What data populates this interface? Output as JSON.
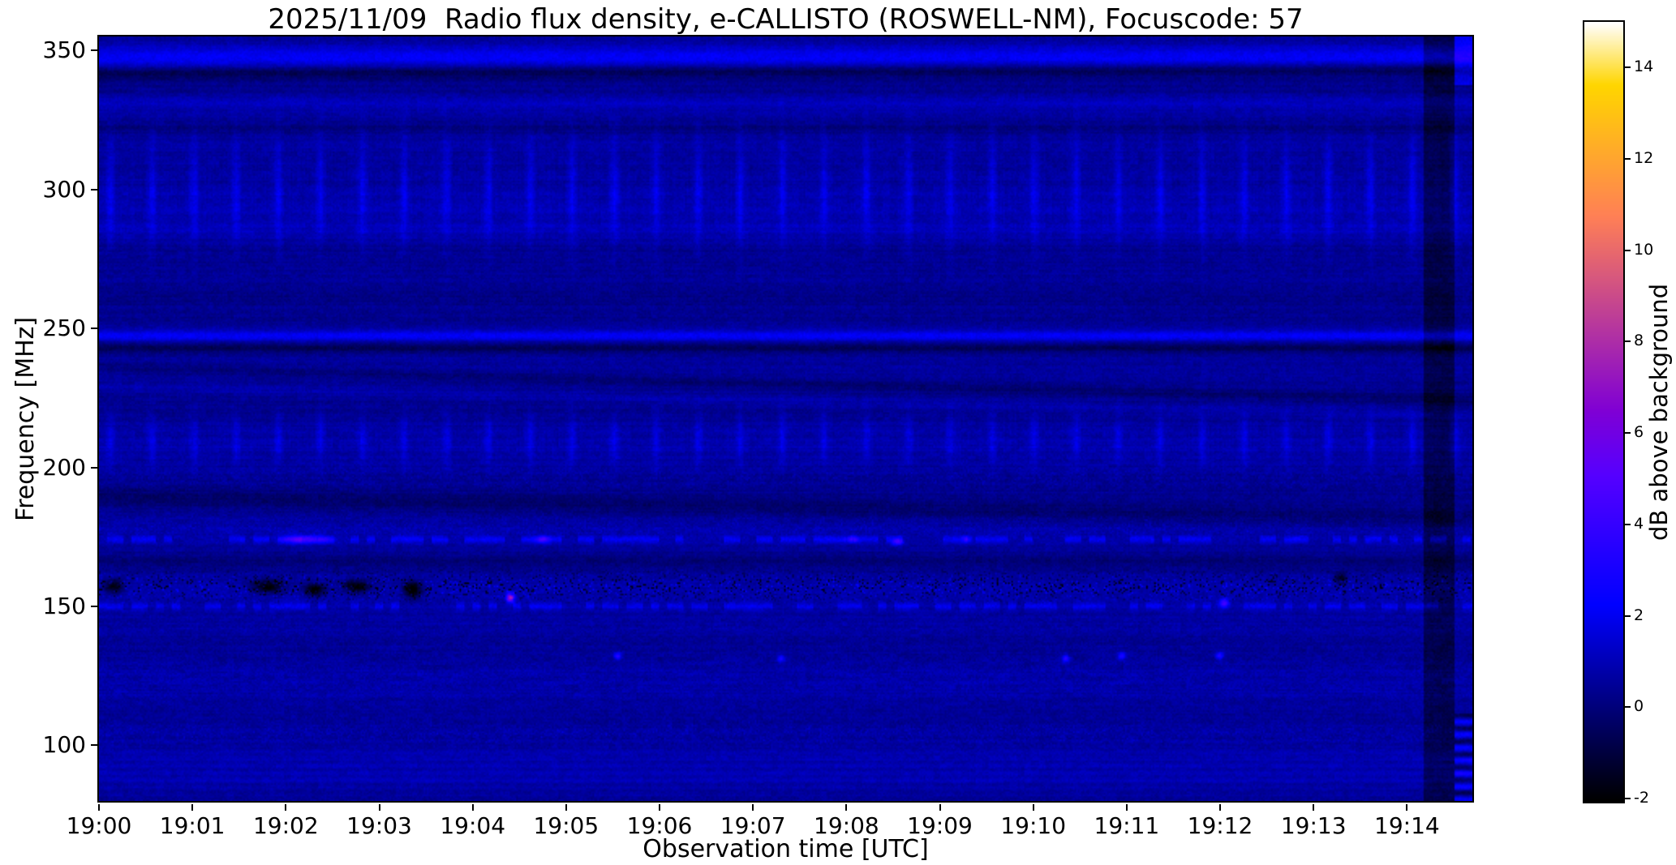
{
  "chart_data": {
    "type": "heatmap",
    "title": "2025/11/09  Radio flux density, e-CALLISTO (ROSWELL-NM), Focuscode: 57",
    "xlabel": "Observation time [UTC]",
    "ylabel": "Frequency [MHz]",
    "colorbar_label": "dB above background",
    "x_ticks": [
      "19:00",
      "19:01",
      "19:02",
      "19:03",
      "19:04",
      "19:05",
      "19:06",
      "19:07",
      "19:08",
      "19:09",
      "19:10",
      "19:11",
      "19:12",
      "19:13",
      "19:14"
    ],
    "y_ticks": [
      350,
      300,
      250,
      200,
      150,
      100
    ],
    "colorbar_ticks": [
      14,
      12,
      10,
      8,
      6,
      4,
      2,
      0,
      -2
    ],
    "time_range_minutes": [
      0,
      14.7
    ],
    "freq_range": [
      80,
      355
    ],
    "db_range": [
      -2,
      15
    ],
    "colormap": "gnuplot2",
    "background_db": 0.45,
    "bands": [
      {
        "f": 348,
        "w": 4,
        "db": 1.6,
        "tex": "smooth"
      },
      {
        "f": 342,
        "w": 2.5,
        "db": -1.1,
        "tex": "smooth",
        "slope": 0.1
      },
      {
        "f": 331,
        "w": 3,
        "db": 0.7,
        "tex": "smooth"
      },
      {
        "f": 322,
        "w": 2.5,
        "db": -0.6,
        "tex": "smooth"
      },
      {
        "f": 300,
        "w": 21,
        "db": 0.5,
        "tex": "grid"
      },
      {
        "f": 285,
        "w": 4,
        "db": 0.4,
        "tex": "smooth"
      },
      {
        "f": 262,
        "w": 4,
        "db": -0.35,
        "tex": "smooth"
      },
      {
        "f": 247.5,
        "w": 2.5,
        "db": 1.7,
        "tex": "smooth"
      },
      {
        "f": 243,
        "w": 2,
        "db": -1.0,
        "tex": "smooth"
      },
      {
        "f": 236,
        "w": 2,
        "db": -0.6,
        "tex": "smooth",
        "slope": -0.8
      },
      {
        "f": 229,
        "w": 2,
        "db": 0.45,
        "tex": "smooth",
        "slope": -0.7
      },
      {
        "f": 210,
        "w": 10,
        "db": 0.45,
        "tex": "grid"
      },
      {
        "f": 196,
        "w": 6,
        "db": 0.4,
        "tex": "speckle"
      },
      {
        "f": 189,
        "w": 4,
        "db": -0.7,
        "tex": "smooth",
        "slope": -0.5
      },
      {
        "f": 178,
        "w": 7,
        "db": 0.45,
        "tex": "speckle"
      },
      {
        "f": 174,
        "w": 1.4,
        "db": 1.1,
        "tex": "dash"
      },
      {
        "f": 166,
        "w": 3,
        "db": -0.5,
        "tex": "smooth"
      },
      {
        "f": 157,
        "w": 5,
        "db": 0.55,
        "tex": "speckle_dark"
      },
      {
        "f": 150,
        "w": 1.6,
        "db": 0.9,
        "tex": "dash"
      },
      {
        "f": 143,
        "w": 3,
        "db": 0.3,
        "tex": "speckle"
      },
      {
        "f": 125,
        "w": 13,
        "db": 0.3,
        "tex": "wave"
      },
      {
        "f": 104,
        "w": 6,
        "db": 0.5,
        "tex": "speckle"
      },
      {
        "f": 95,
        "w": 4,
        "db": 0.35,
        "tex": "stripes"
      },
      {
        "f": 87,
        "w": 5,
        "db": 0.55,
        "tex": "stripes"
      }
    ],
    "events": [
      {
        "t": 2.2,
        "f": 174,
        "db": 3.8,
        "wt": 0.22,
        "wf": 1.4
      },
      {
        "t": 4.75,
        "f": 174,
        "db": 2.8,
        "wt": 0.07,
        "wf": 1.2
      },
      {
        "t": 8.05,
        "f": 174,
        "db": 3.2,
        "wt": 0.06,
        "wf": 1.2
      },
      {
        "t": 8.55,
        "f": 173,
        "db": 2.8,
        "wt": 0.06,
        "wf": 1.2
      },
      {
        "t": 9.3,
        "f": 174,
        "db": 2.2,
        "wt": 0.05,
        "wf": 1.2
      },
      {
        "t": 4.4,
        "f": 153,
        "db": 7,
        "wt": 0.04,
        "wf": 1.6
      },
      {
        "t": 12.05,
        "f": 151,
        "db": 4,
        "wt": 0.05,
        "wf": 1.5
      },
      {
        "t": 5.55,
        "f": 132,
        "db": 3,
        "wt": 0.04,
        "wf": 1.3
      },
      {
        "t": 7.3,
        "f": 131,
        "db": 2.5,
        "wt": 0.04,
        "wf": 1.3
      },
      {
        "t": 10.35,
        "f": 131,
        "db": 3,
        "wt": 0.04,
        "wf": 1.3
      },
      {
        "t": 10.95,
        "f": 132,
        "db": 2.6,
        "wt": 0.04,
        "wf": 1.3
      },
      {
        "t": 12.0,
        "f": 132,
        "db": 3,
        "wt": 0.04,
        "wf": 1.3
      },
      {
        "t": 0.15,
        "f": 157,
        "db": -2.6,
        "wt": 0.1,
        "wf": 2.5
      },
      {
        "t": 1.8,
        "f": 157,
        "db": -3,
        "wt": 0.16,
        "wf": 2.2
      },
      {
        "t": 2.3,
        "f": 156,
        "db": -3,
        "wt": 0.12,
        "wf": 2.2
      },
      {
        "t": 2.75,
        "f": 157,
        "db": -3,
        "wt": 0.14,
        "wf": 2.2
      },
      {
        "t": 3.35,
        "f": 156,
        "db": -3.2,
        "wt": 0.1,
        "wf": 3
      },
      {
        "t": 13.3,
        "f": 160,
        "db": -2.2,
        "wt": 0.06,
        "wf": 2
      }
    ],
    "dark_column": {
      "t0": 14.18,
      "t1": 14.52,
      "db": -1.25
    },
    "right_region": {
      "t0": 14.52,
      "top_freq": 338,
      "top_db": 1.4,
      "stripe_freq": 112,
      "stripe_db": 1.5
    }
  }
}
